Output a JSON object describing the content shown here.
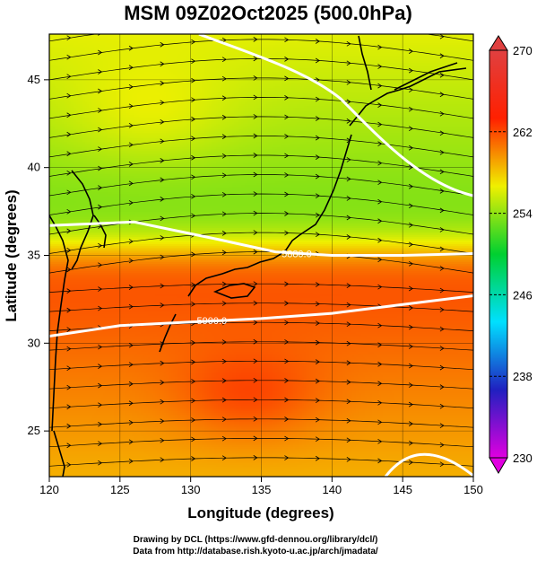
{
  "title": "MSM 09Z02Oct2025 (500.0hPa)",
  "xlabel": "Longitude (degrees)",
  "ylabel": "Latitude  (degrees)",
  "credits": [
    "Drawing by DCL (https://www.gfd-dennou.org/library/dcl/)",
    "Data from http://database.rish.kyoto-u.ac.jp/arch/jmadata/"
  ],
  "chart_data": {
    "type": "heatmap",
    "xlim": [
      120,
      150
    ],
    "ylim": [
      22.4,
      47.6
    ],
    "xticks": [
      120,
      125,
      130,
      135,
      140,
      145,
      150
    ],
    "yticks": [
      25,
      30,
      35,
      40,
      45
    ],
    "grid": true,
    "colorbar": {
      "min": 230,
      "max": 270,
      "ticks": [
        230,
        238,
        246,
        254,
        262,
        270
      ],
      "colors": [
        "#e000e0",
        "#2020c0",
        "#00e0ff",
        "#00d030",
        "#f0f000",
        "#ff2000",
        "#e04040"
      ]
    },
    "contours": [
      {
        "label": "5880.0",
        "lat_at_lon": [
          [
            120,
            36.7
          ],
          [
            126,
            36.9
          ],
          [
            132,
            35.9
          ],
          [
            136,
            35.2
          ],
          [
            140,
            35.0
          ],
          [
            145,
            35.0
          ],
          [
            150,
            35.1
          ]
        ]
      },
      {
        "label": "5900.0",
        "lat_at_lon": [
          [
            120,
            30.4
          ],
          [
            125,
            31.0
          ],
          [
            130,
            31.2
          ],
          [
            135,
            31.4
          ],
          [
            140,
            31.7
          ],
          [
            145,
            32.2
          ],
          [
            150,
            32.7
          ]
        ]
      }
    ],
    "contour_labels": [
      "5880.0",
      "5900.0"
    ]
  }
}
